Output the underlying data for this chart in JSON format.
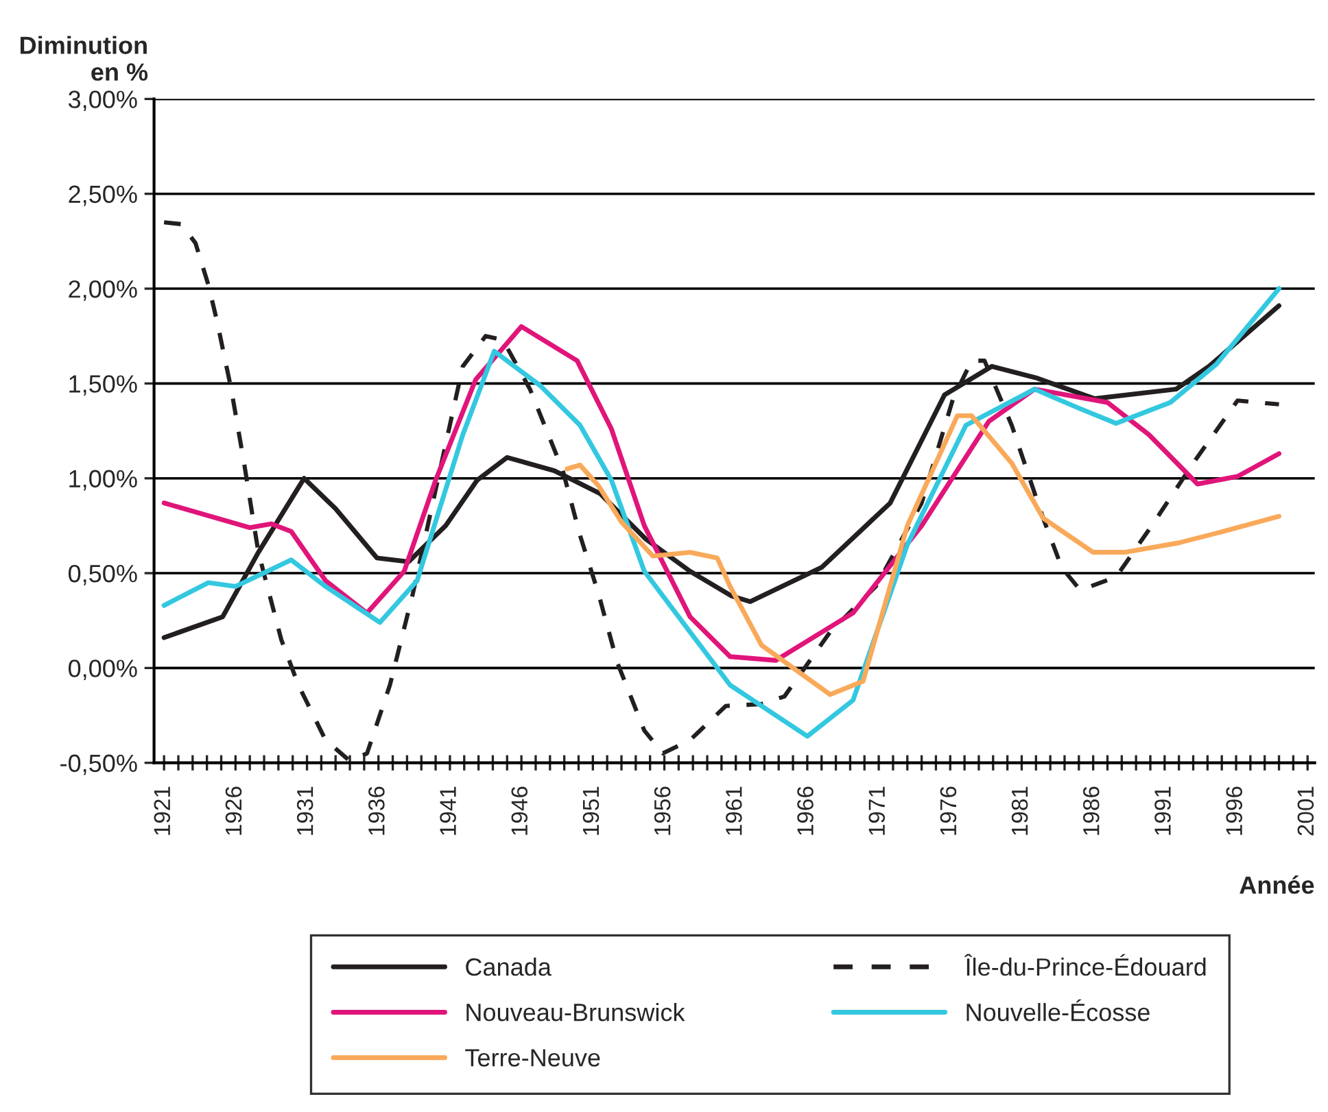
{
  "chart_data": {
    "type": "line",
    "ylabel": "Diminution\nen %",
    "xlabel": "Année",
    "xlim": [
      1920.3,
      2001.5
    ],
    "ylim": [
      -0.5,
      3.0
    ],
    "yticks": [
      {
        "value": -0.5,
        "label": "-0,50%"
      },
      {
        "value": 0,
        "label": "0,00%"
      },
      {
        "value": 0.5,
        "label": "0,50%"
      },
      {
        "value": 1.0,
        "label": "1,00%"
      },
      {
        "value": 1.5,
        "label": "1,50%"
      },
      {
        "value": 2.0,
        "label": "2,00%"
      },
      {
        "value": 2.5,
        "label": "2,50%"
      },
      {
        "value": 3.0,
        "label": "3,00%"
      }
    ],
    "xticks": [
      1921,
      {
        "value": 1922,
        "label": null
      },
      {
        "value": 1923,
        "label": null
      },
      {
        "value": 1924,
        "label": null
      },
      {
        "value": 1925,
        "label": null
      },
      1926,
      {
        "value": 1927,
        "label": null
      },
      {
        "value": 1928,
        "label": null
      },
      {
        "value": 1929,
        "label": null
      },
      {
        "value": 1930,
        "label": null
      },
      1931,
      {
        "value": 1932,
        "label": null
      },
      {
        "value": 1933,
        "label": null
      },
      {
        "value": 1934,
        "label": null
      },
      {
        "value": 1935,
        "label": null
      },
      1936,
      {
        "value": 1937,
        "label": null
      },
      {
        "value": 1938,
        "label": null
      },
      {
        "value": 1939,
        "label": null
      },
      {
        "value": 1940,
        "label": null
      },
      1941,
      {
        "value": 1942,
        "label": null
      },
      {
        "value": 1943,
        "label": null
      },
      {
        "value": 1944,
        "label": null
      },
      {
        "value": 1945,
        "label": null
      },
      1946,
      {
        "value": 1947,
        "label": null
      },
      {
        "value": 1948,
        "label": null
      },
      {
        "value": 1949,
        "label": null
      },
      {
        "value": 1950,
        "label": null
      },
      1951,
      {
        "value": 1952,
        "label": null
      },
      {
        "value": 1953,
        "label": null
      },
      {
        "value": 1954,
        "label": null
      },
      {
        "value": 1955,
        "label": null
      },
      1956,
      {
        "value": 1957,
        "label": null
      },
      {
        "value": 1958,
        "label": null
      },
      {
        "value": 1959,
        "label": null
      },
      {
        "value": 1960,
        "label": null
      },
      1961,
      {
        "value": 1962,
        "label": null
      },
      {
        "value": 1963,
        "label": null
      },
      {
        "value": 1964,
        "label": null
      },
      {
        "value": 1965,
        "label": null
      },
      1966,
      {
        "value": 1967,
        "label": null
      },
      {
        "value": 1968,
        "label": null
      },
      {
        "value": 1969,
        "label": null
      },
      {
        "value": 1970,
        "label": null
      },
      1971,
      {
        "value": 1972,
        "label": null
      },
      {
        "value": 1973,
        "label": null
      },
      {
        "value": 1974,
        "label": null
      },
      {
        "value": 1975,
        "label": null
      },
      1976,
      {
        "value": 1977,
        "label": null
      },
      {
        "value": 1978,
        "label": null
      },
      {
        "value": 1979,
        "label": null
      },
      {
        "value": 1980,
        "label": null
      },
      1981,
      {
        "value": 1982,
        "label": null
      },
      {
        "value": 1983,
        "label": null
      },
      {
        "value": 1984,
        "label": null
      },
      {
        "value": 1985,
        "label": null
      },
      1986,
      {
        "value": 1987,
        "label": null
      },
      {
        "value": 1988,
        "label": null
      },
      {
        "value": 1989,
        "label": null
      },
      {
        "value": 1990,
        "label": null
      },
      1991,
      {
        "value": 1992,
        "label": null
      },
      {
        "value": 1993,
        "label": null
      },
      {
        "value": 1994,
        "label": null
      },
      {
        "value": 1995,
        "label": null
      },
      1996,
      {
        "value": 1997,
        "label": null
      },
      {
        "value": 1998,
        "label": null
      },
      {
        "value": 1999,
        "label": null
      },
      {
        "value": 2000,
        "label": null
      },
      2001
    ],
    "grid": "y",
    "legend": "bottom",
    "series": [
      {
        "name": "Canada",
        "color": "#231f20",
        "line_style": "solid",
        "x": [
          1921,
          1925.1,
          1927.6,
          1930.8,
          1933,
          1935.9,
          1938.1,
          1940.7,
          1942.9,
          1945,
          1948.3,
          1951.5,
          1954.7,
          1957.8,
          1960.7,
          1962,
          1967,
          1971.8,
          1975.6,
          1978.9,
          1982,
          1986.1,
          1991.8,
          1994.1,
          1999
        ],
        "values": [
          0.16,
          0.27,
          0.61,
          1.0,
          0.84,
          0.58,
          0.56,
          0.75,
          0.99,
          1.11,
          1.04,
          0.92,
          0.68,
          0.51,
          0.38,
          0.35,
          0.53,
          0.87,
          1.44,
          1.59,
          1.53,
          1.42,
          1.47,
          1.59,
          1.91
        ]
      },
      {
        "name": "Île-du-Prince-Édouard",
        "color": "#231f20",
        "line_style": "dashed",
        "x": [
          1921,
          1922.2,
          1923.2,
          1924.1,
          1924.7,
          1925.7,
          1926.6,
          1927.6,
          1929.2,
          1930.4,
          1932.3,
          1934,
          1935.2,
          1936.8,
          1938.4,
          1940,
          1941.9,
          1943.5,
          1944.7,
          1946.6,
          1948.9,
          1950.1,
          1951.4,
          1952.7,
          1954.6,
          1955.9,
          1957.8,
          1960.3,
          1962.8,
          1964.4,
          1967.6,
          1970.8,
          1974,
          1976.2,
          1977.5,
          1978.4,
          1980.3,
          1981.6,
          1982.5,
          1983.8,
          1985.1,
          1987.6,
          1990.1,
          1993,
          1996.1,
          1999
        ],
        "values": [
          2.35,
          2.34,
          2.24,
          2.02,
          1.83,
          1.47,
          1.08,
          0.61,
          0.15,
          -0.09,
          -0.38,
          -0.49,
          -0.45,
          -0.09,
          0.39,
          0.94,
          1.59,
          1.75,
          1.73,
          1.47,
          1.04,
          0.7,
          0.39,
          0.03,
          -0.33,
          -0.45,
          -0.38,
          -0.2,
          -0.19,
          -0.15,
          0.19,
          0.43,
          0.87,
          1.42,
          1.62,
          1.62,
          1.28,
          0.99,
          0.79,
          0.53,
          0.41,
          0.48,
          0.75,
          1.08,
          1.41,
          1.39
        ]
      },
      {
        "name": "Nouveau-Brunswick",
        "color": "#e0157a",
        "line_style": "solid",
        "x": [
          1921,
          1927,
          1928.5,
          1929.9,
          1932.3,
          1935.2,
          1937.8,
          1940,
          1942.8,
          1946,
          1949.9,
          1952.3,
          1954.6,
          1957.8,
          1960.6,
          1963.8,
          1969.2,
          1974,
          1978.7,
          1981.9,
          1987,
          1989.9,
          1993.3,
          1996.1,
          1999
        ],
        "values": [
          0.87,
          0.74,
          0.76,
          0.72,
          0.46,
          0.29,
          0.51,
          0.99,
          1.52,
          1.8,
          1.62,
          1.26,
          0.75,
          0.27,
          0.06,
          0.04,
          0.29,
          0.75,
          1.3,
          1.47,
          1.4,
          1.23,
          0.97,
          1.01,
          1.13
        ]
      },
      {
        "name": "Nouvelle-Écosse",
        "color": "#33c8e0",
        "line_style": "solid",
        "x": [
          1921,
          1924.1,
          1926,
          1929.9,
          1932.3,
          1936.1,
          1938.7,
          1941.9,
          1944.1,
          1947.3,
          1950.1,
          1952.3,
          1954.6,
          1957.8,
          1960.6,
          1966,
          1969.2,
          1973,
          1977.1,
          1981.9,
          1985,
          1987.6,
          1991.4,
          1994.6,
          1999
        ],
        "values": [
          0.33,
          0.45,
          0.43,
          0.57,
          0.43,
          0.24,
          0.46,
          1.23,
          1.67,
          1.49,
          1.28,
          0.99,
          0.51,
          0.19,
          -0.09,
          -0.36,
          -0.17,
          0.65,
          1.28,
          1.47,
          1.37,
          1.29,
          1.4,
          1.6,
          2.0
        ]
      },
      {
        "name": "Terre-Neuve",
        "color": "#f9a95a",
        "line_style": "solid",
        "x": [
          1949.2,
          1950.1,
          1951.4,
          1953,
          1955.2,
          1957.8,
          1959.7,
          1960.6,
          1962.8,
          1967.6,
          1969.9,
          1973,
          1976.5,
          1977.5,
          1980.3,
          1982.5,
          1986,
          1988.2,
          1992,
          1995.1,
          1999
        ],
        "values": [
          1.05,
          1.07,
          0.96,
          0.77,
          0.59,
          0.61,
          0.58,
          0.43,
          0.12,
          -0.14,
          -0.07,
          0.75,
          1.33,
          1.33,
          1.08,
          0.79,
          0.61,
          0.61,
          0.66,
          0.72,
          0.8
        ]
      }
    ]
  }
}
